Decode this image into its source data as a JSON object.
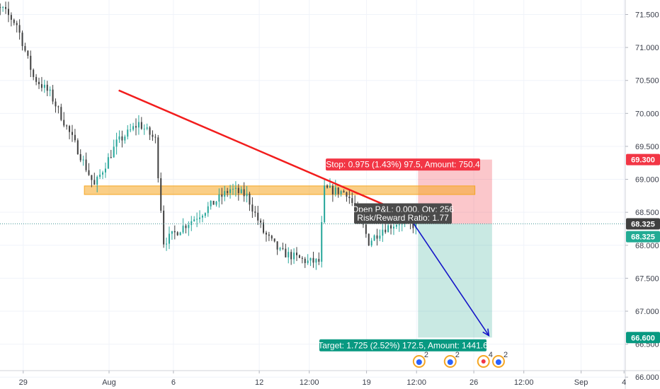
{
  "chart_data": {
    "type": "candlestick",
    "y_axis": {
      "position": "right",
      "ylim": [
        65.82,
        71.72
      ],
      "ticks": [
        71.5,
        71.0,
        70.5,
        70.0,
        69.5,
        69.0,
        68.5,
        68.0,
        67.5,
        67.0,
        66.5,
        66.0
      ],
      "tick_labels": [
        "71.500",
        "71.000",
        "70.500",
        "70.000",
        "69.500",
        "69.000",
        "68.500",
        "68.000",
        "67.500",
        "67.000",
        "66.500",
        "66.000"
      ]
    },
    "x_axis": {
      "tick_labels": [
        "29",
        "Aug",
        "6",
        "12",
        "12:00",
        "19",
        "12:00",
        "26",
        "12:00",
        "Sep",
        "4"
      ]
    },
    "grid": true,
    "current_price": {
      "value": 68.325,
      "label": "68.325"
    },
    "price_tags": [
      {
        "value": 69.3,
        "label": "69.300",
        "color": "#f23645"
      },
      {
        "value": 68.325,
        "label": "68.325",
        "color": "#3f3f3f"
      },
      {
        "value": 68.13,
        "label": "68.325",
        "color": "#22ab94"
      },
      {
        "value": 66.6,
        "label": "66.600",
        "color": "#089981"
      }
    ],
    "candles": {
      "colors": {
        "up": "#26a69a",
        "down": "#3f3f3f"
      },
      "segments": [
        {
          "from": 71.62,
          "to": 71.57,
          "n": 8
        },
        {
          "from": 71.57,
          "to": 71.35,
          "n": 5
        },
        {
          "from": 71.35,
          "to": 70.55,
          "n": 6
        },
        {
          "from": 70.55,
          "to": 70.3,
          "n": 6
        },
        {
          "from": 70.3,
          "to": 69.45,
          "n": 10
        },
        {
          "from": 69.45,
          "to": 68.9,
          "n": 6
        },
        {
          "from": 68.9,
          "to": 69.55,
          "n": 8
        },
        {
          "from": 69.55,
          "to": 69.85,
          "n": 8
        },
        {
          "from": 69.85,
          "to": 69.6,
          "n": 6
        },
        {
          "from": 69.6,
          "to": 68.05,
          "n": 3
        },
        {
          "from": 68.05,
          "to": 68.25,
          "n": 6
        },
        {
          "from": 68.25,
          "to": 68.5,
          "n": 8
        },
        {
          "from": 68.5,
          "to": 68.85,
          "n": 10
        },
        {
          "from": 68.85,
          "to": 68.75,
          "n": 6
        },
        {
          "from": 68.75,
          "to": 68.2,
          "n": 6
        },
        {
          "from": 68.2,
          "to": 67.9,
          "n": 6
        },
        {
          "from": 67.9,
          "to": 67.75,
          "n": 10
        },
        {
          "from": 67.75,
          "to": 67.75,
          "n": 4
        },
        {
          "from": 67.75,
          "to": 68.85,
          "n": 2
        },
        {
          "from": 68.85,
          "to": 68.8,
          "n": 8
        },
        {
          "from": 68.8,
          "to": 68.4,
          "n": 5
        },
        {
          "from": 68.4,
          "to": 68.05,
          "n": 3
        },
        {
          "from": 68.05,
          "to": 68.25,
          "n": 5
        },
        {
          "from": 68.25,
          "to": 68.35,
          "n": 6
        },
        {
          "from": 68.35,
          "to": 68.3,
          "n": 6
        }
      ],
      "x_start_day": -5.85,
      "x_end_day": 14.3
    },
    "drawings": {
      "trendline": {
        "color": "#f21d1d",
        "from": {
          "x_day": 0.45,
          "y": 70.35
        },
        "to": {
          "x_day": 14.0,
          "y": 68.45
        }
      },
      "zone": {
        "color": "#f5a623",
        "from_day": -1.15,
        "to_day": 17.05,
        "y_low": 68.77,
        "y_high": 68.9
      },
      "arrow": {
        "color": "#1515c8",
        "from": {
          "x_day": 14.15,
          "y": 68.35
        },
        "to": {
          "x_day": 17.7,
          "y": 66.63
        }
      },
      "position": {
        "type": "short",
        "from_day": 14.4,
        "to_day": 17.85,
        "entry": 68.325,
        "stop": 69.3,
        "target": 66.6,
        "stop_label": "Stop: 0.975 (1.43%) 97.5, Amount: 750.4",
        "target_label": "Target: 1.725 (2.52%) 172.5, Amount: 1441.6",
        "pnl_label": "Open P&L: 0.000, Qty: 256",
        "rr_label": "Risk/Reward Ratio: 1.77"
      }
    },
    "events": [
      {
        "x_day": 14.45,
        "count": "2",
        "kind": "news"
      },
      {
        "x_day": 15.9,
        "count": "2",
        "kind": "news"
      },
      {
        "x_day": 17.45,
        "count": "4",
        "kind": "event"
      },
      {
        "x_day": 18.15,
        "count": "2",
        "kind": "news"
      }
    ]
  }
}
